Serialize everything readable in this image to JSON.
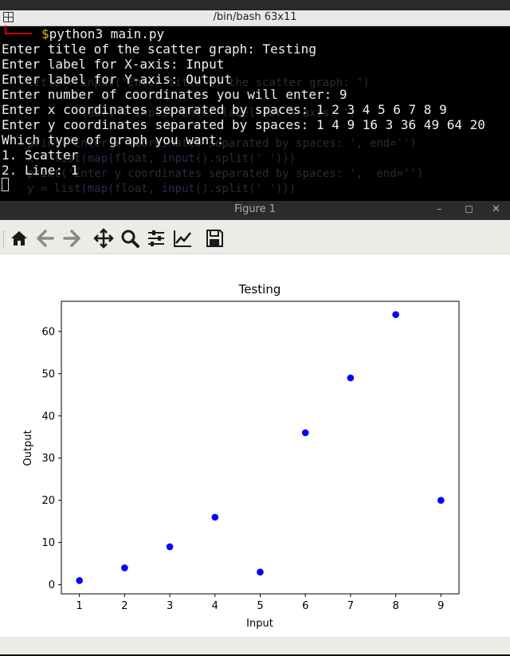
{
  "terminal": {
    "title": "/bin/bash 63x11",
    "prompt_symbol": "$",
    "command": "python3 main.py",
    "lines": [
      "Enter title of the scatter graph: Testing",
      "Enter label for X-axis: Input",
      "Enter label for Y-axis: Output",
      "Enter number of coordinates you will enter: 9",
      "Enter x coordinates separated by spaces: 1 2 3 4 5 6 7 8 9",
      "Enter y coordinates separated by spaces: 1 4 9 16 3 36 49 64 20",
      "Which type of graph you want:",
      "1. Scatter",
      "2. Line: 1"
    ]
  },
  "figure": {
    "title": "Figure 1",
    "controls": {
      "minimize": "–",
      "maximize": "◻",
      "close": "✕"
    },
    "toolbar": [
      "home-icon",
      "back-arrow-icon",
      "forward-arrow-icon",
      "pan-icon",
      "zoom-icon",
      "configure-subplots-icon",
      "edit-axis-icon",
      "save-icon"
    ]
  },
  "chart_data": {
    "type": "scatter",
    "title": "Testing",
    "xlabel": "Input",
    "ylabel": "Output",
    "x": [
      1,
      2,
      3,
      4,
      5,
      6,
      7,
      8,
      9
    ],
    "y": [
      1,
      4,
      9,
      16,
      3,
      36,
      49,
      64,
      20
    ],
    "xlim": [
      0.6,
      9.4
    ],
    "ylim": [
      -2.15,
      67.15
    ],
    "xticks": [
      "1",
      "2",
      "3",
      "4",
      "5",
      "6",
      "7",
      "8",
      "9"
    ],
    "yticks": [
      "0",
      "10",
      "20",
      "30",
      "40",
      "50",
      "60"
    ],
    "marker_color": "#0000ff",
    "grid": false,
    "legend": "none"
  }
}
